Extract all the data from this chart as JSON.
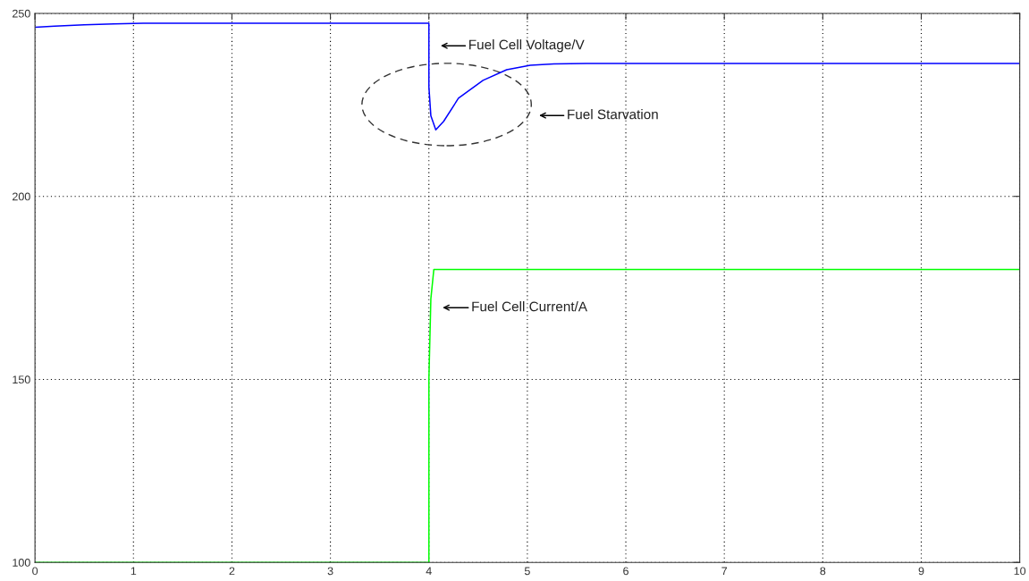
{
  "chart_data": {
    "type": "line",
    "xlim": [
      0,
      10
    ],
    "ylim": [
      100,
      250
    ],
    "xticks": [
      0,
      1,
      2,
      3,
      4,
      5,
      6,
      7,
      8,
      9,
      10
    ],
    "yticks": [
      100,
      150,
      200,
      250
    ],
    "grid": true,
    "line_style": "solid",
    "marker": "none",
    "series": [
      {
        "color": "#0000ff",
        "x": [
          0,
          0.2,
          0.5,
          0.8,
          1.1,
          2,
          3,
          4,
          4,
          4.02,
          4.07,
          4.15,
          4.3,
          4.55,
          4.79,
          5.03,
          5.27,
          5.6,
          6,
          7,
          8,
          9,
          10
        ],
        "values": [
          246.2,
          246.5,
          246.9,
          247.1,
          247.3,
          247.3,
          247.3,
          247.3,
          230,
          222,
          218.2,
          220.5,
          226.8,
          231.7,
          234.6,
          235.8,
          236.2,
          236.3,
          236.3,
          236.3,
          236.3,
          236.3,
          236.3
        ]
      },
      {
        "color": "#00ff00",
        "x": [
          0,
          4,
          4,
          4.02,
          4.05,
          5,
          6,
          7,
          8,
          9,
          10
        ],
        "values": [
          100,
          100,
          150,
          172,
          180,
          180,
          180,
          180,
          180,
          180,
          180
        ]
      }
    ],
    "annotations": [
      "Fuel Cell Voltage/V",
      "Fuel Starvation",
      "Fuel Cell Current/A"
    ]
  }
}
